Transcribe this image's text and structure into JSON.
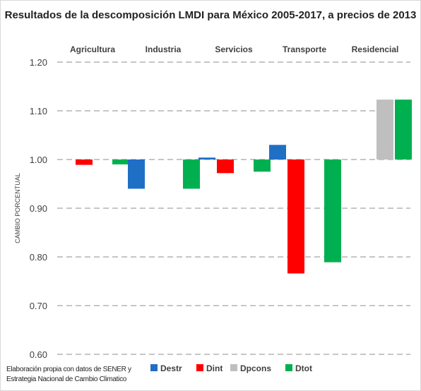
{
  "chart_data": {
    "type": "bar",
    "title": "Resultados de la descomposición LMDI  para México 2005-2017, a precios de 2013",
    "ylabel": "CAMBIO PORCENTUAL",
    "xlabel": "",
    "baseline": 1.0,
    "ylim": [
      0.6,
      1.2
    ],
    "yticks": [
      "1.20",
      "1.10",
      "1.00",
      "0.90",
      "0.80",
      "0.70",
      "0.60"
    ],
    "ytick_values": [
      1.2,
      1.1,
      1.0,
      0.9,
      0.8,
      0.7,
      0.6
    ],
    "grid": true,
    "legend_position": "bottom",
    "categories": [
      "Agricultura",
      "Industria",
      "Servicios",
      "Transporte",
      "Residencial"
    ],
    "series": [
      {
        "name": "Destr",
        "color": "#1f6fc5",
        "values": [
          1.0,
          0.94,
          1.004,
          1.03,
          1.0
        ]
      },
      {
        "name": "Dint",
        "color": "#ff0000",
        "values": [
          0.989,
          1.0,
          0.972,
          0.766,
          1.0
        ]
      },
      {
        "name": "Dpcons",
        "color": "#bfbfbf",
        "values": [
          1.0,
          1.0,
          1.0,
          1.0,
          1.123
        ]
      },
      {
        "name": "Dtot",
        "color": "#00b050",
        "values": [
          0.99,
          0.94,
          0.975,
          0.789,
          1.123
        ]
      }
    ]
  },
  "source_note": "Elaboración propia con datos de SENER y Estrategia Nacional de Cambio Climatico"
}
